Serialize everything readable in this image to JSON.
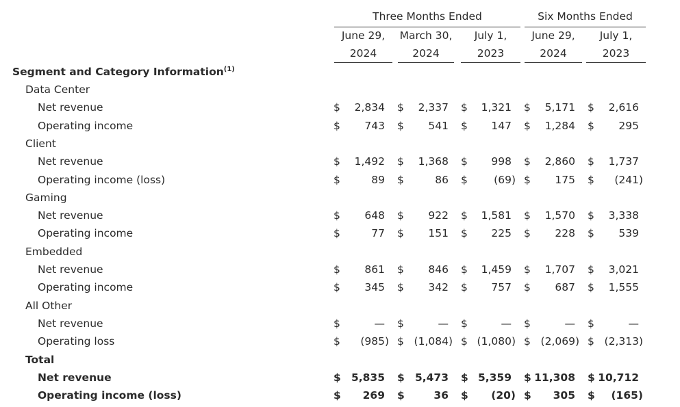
{
  "header": {
    "group_three": "Three Months Ended",
    "group_six": "Six Months Ended",
    "columns": [
      {
        "line1": "June 29,",
        "line2": "2024"
      },
      {
        "line1": "March 30,",
        "line2": "2024"
      },
      {
        "line1": "July 1,",
        "line2": "2023"
      },
      {
        "line1": "June 29,",
        "line2": "2024"
      },
      {
        "line1": "July 1,",
        "line2": "2023"
      }
    ]
  },
  "title": "Segment and Category Information",
  "title_footnote": "(1)",
  "rows": [
    {
      "label": "Data Center",
      "level": 1
    },
    {
      "label": "Net revenue",
      "level": 2,
      "cells": [
        {
          "cur": "$",
          "val": "2,834"
        },
        {
          "cur": "$",
          "val": "2,337"
        },
        {
          "cur": "$",
          "val": "1,321"
        },
        {
          "cur": "$",
          "val": "5,171"
        },
        {
          "cur": "$",
          "val": "2,616"
        }
      ]
    },
    {
      "label": "Operating income",
      "level": 2,
      "cells": [
        {
          "cur": "$",
          "val": "743"
        },
        {
          "cur": "$",
          "val": "541"
        },
        {
          "cur": "$",
          "val": "147"
        },
        {
          "cur": "$",
          "val": "1,284"
        },
        {
          "cur": "$",
          "val": "295"
        }
      ]
    },
    {
      "label": "Client",
      "level": 1
    },
    {
      "label": "Net revenue",
      "level": 2,
      "cells": [
        {
          "cur": "$",
          "val": "1,492"
        },
        {
          "cur": "$",
          "val": "1,368"
        },
        {
          "cur": "$",
          "val": "998"
        },
        {
          "cur": "$",
          "val": "2,860"
        },
        {
          "cur": "$",
          "val": "1,737"
        }
      ]
    },
    {
      "label": "Operating income (loss)",
      "level": 2,
      "cells": [
        {
          "cur": "$",
          "val": "89"
        },
        {
          "cur": "$",
          "val": "86"
        },
        {
          "cur": "$",
          "val": "(69)"
        },
        {
          "cur": "$",
          "val": "175"
        },
        {
          "cur": "$",
          "val": "(241)"
        }
      ]
    },
    {
      "label": "Gaming",
      "level": 1
    },
    {
      "label": "Net revenue",
      "level": 2,
      "cells": [
        {
          "cur": "$",
          "val": "648"
        },
        {
          "cur": "$",
          "val": "922"
        },
        {
          "cur": "$",
          "val": "1,581"
        },
        {
          "cur": "$",
          "val": "1,570"
        },
        {
          "cur": "$",
          "val": "3,338"
        }
      ]
    },
    {
      "label": "Operating income",
      "level": 2,
      "cells": [
        {
          "cur": "$",
          "val": "77"
        },
        {
          "cur": "$",
          "val": "151"
        },
        {
          "cur": "$",
          "val": "225"
        },
        {
          "cur": "$",
          "val": "228"
        },
        {
          "cur": "$",
          "val": "539"
        }
      ]
    },
    {
      "label": "Embedded",
      "level": 1
    },
    {
      "label": "Net revenue",
      "level": 2,
      "cells": [
        {
          "cur": "$",
          "val": "861"
        },
        {
          "cur": "$",
          "val": "846"
        },
        {
          "cur": "$",
          "val": "1,459"
        },
        {
          "cur": "$",
          "val": "1,707"
        },
        {
          "cur": "$",
          "val": "3,021"
        }
      ]
    },
    {
      "label": "Operating income",
      "level": 2,
      "cells": [
        {
          "cur": "$",
          "val": "345"
        },
        {
          "cur": "$",
          "val": "342"
        },
        {
          "cur": "$",
          "val": "757"
        },
        {
          "cur": "$",
          "val": "687"
        },
        {
          "cur": "$",
          "val": "1,555"
        }
      ]
    },
    {
      "label": "All Other",
      "level": 1
    },
    {
      "label": "Net revenue",
      "level": 2,
      "cells": [
        {
          "cur": "$",
          "val": "—"
        },
        {
          "cur": "$",
          "val": "—"
        },
        {
          "cur": "$",
          "val": "—"
        },
        {
          "cur": "$",
          "val": "—"
        },
        {
          "cur": "$",
          "val": "—"
        }
      ]
    },
    {
      "label": "Operating loss",
      "level": 2,
      "cells": [
        {
          "cur": "$",
          "val": "(985)"
        },
        {
          "cur": "$",
          "val": "(1,084)"
        },
        {
          "cur": "$",
          "val": "(1,080)"
        },
        {
          "cur": "$",
          "val": "(2,069)"
        },
        {
          "cur": "$",
          "val": "(2,313)"
        }
      ]
    },
    {
      "label": "Total",
      "level": 1,
      "bold": true
    },
    {
      "label": "Net revenue",
      "level": 2,
      "bold": true,
      "cells": [
        {
          "cur": "$",
          "val": "5,835"
        },
        {
          "cur": "$",
          "val": "5,473"
        },
        {
          "cur": "$",
          "val": "5,359"
        },
        {
          "cur": "$",
          "val": "11,308"
        },
        {
          "cur": "$",
          "val": "10,712"
        }
      ]
    },
    {
      "label": "Operating income (loss)",
      "level": 2,
      "bold": true,
      "cells": [
        {
          "cur": "$",
          "val": "269"
        },
        {
          "cur": "$",
          "val": "36"
        },
        {
          "cur": "$",
          "val": "(20)"
        },
        {
          "cur": "$",
          "val": "305"
        },
        {
          "cur": "$",
          "val": "(165)"
        }
      ]
    }
  ]
}
